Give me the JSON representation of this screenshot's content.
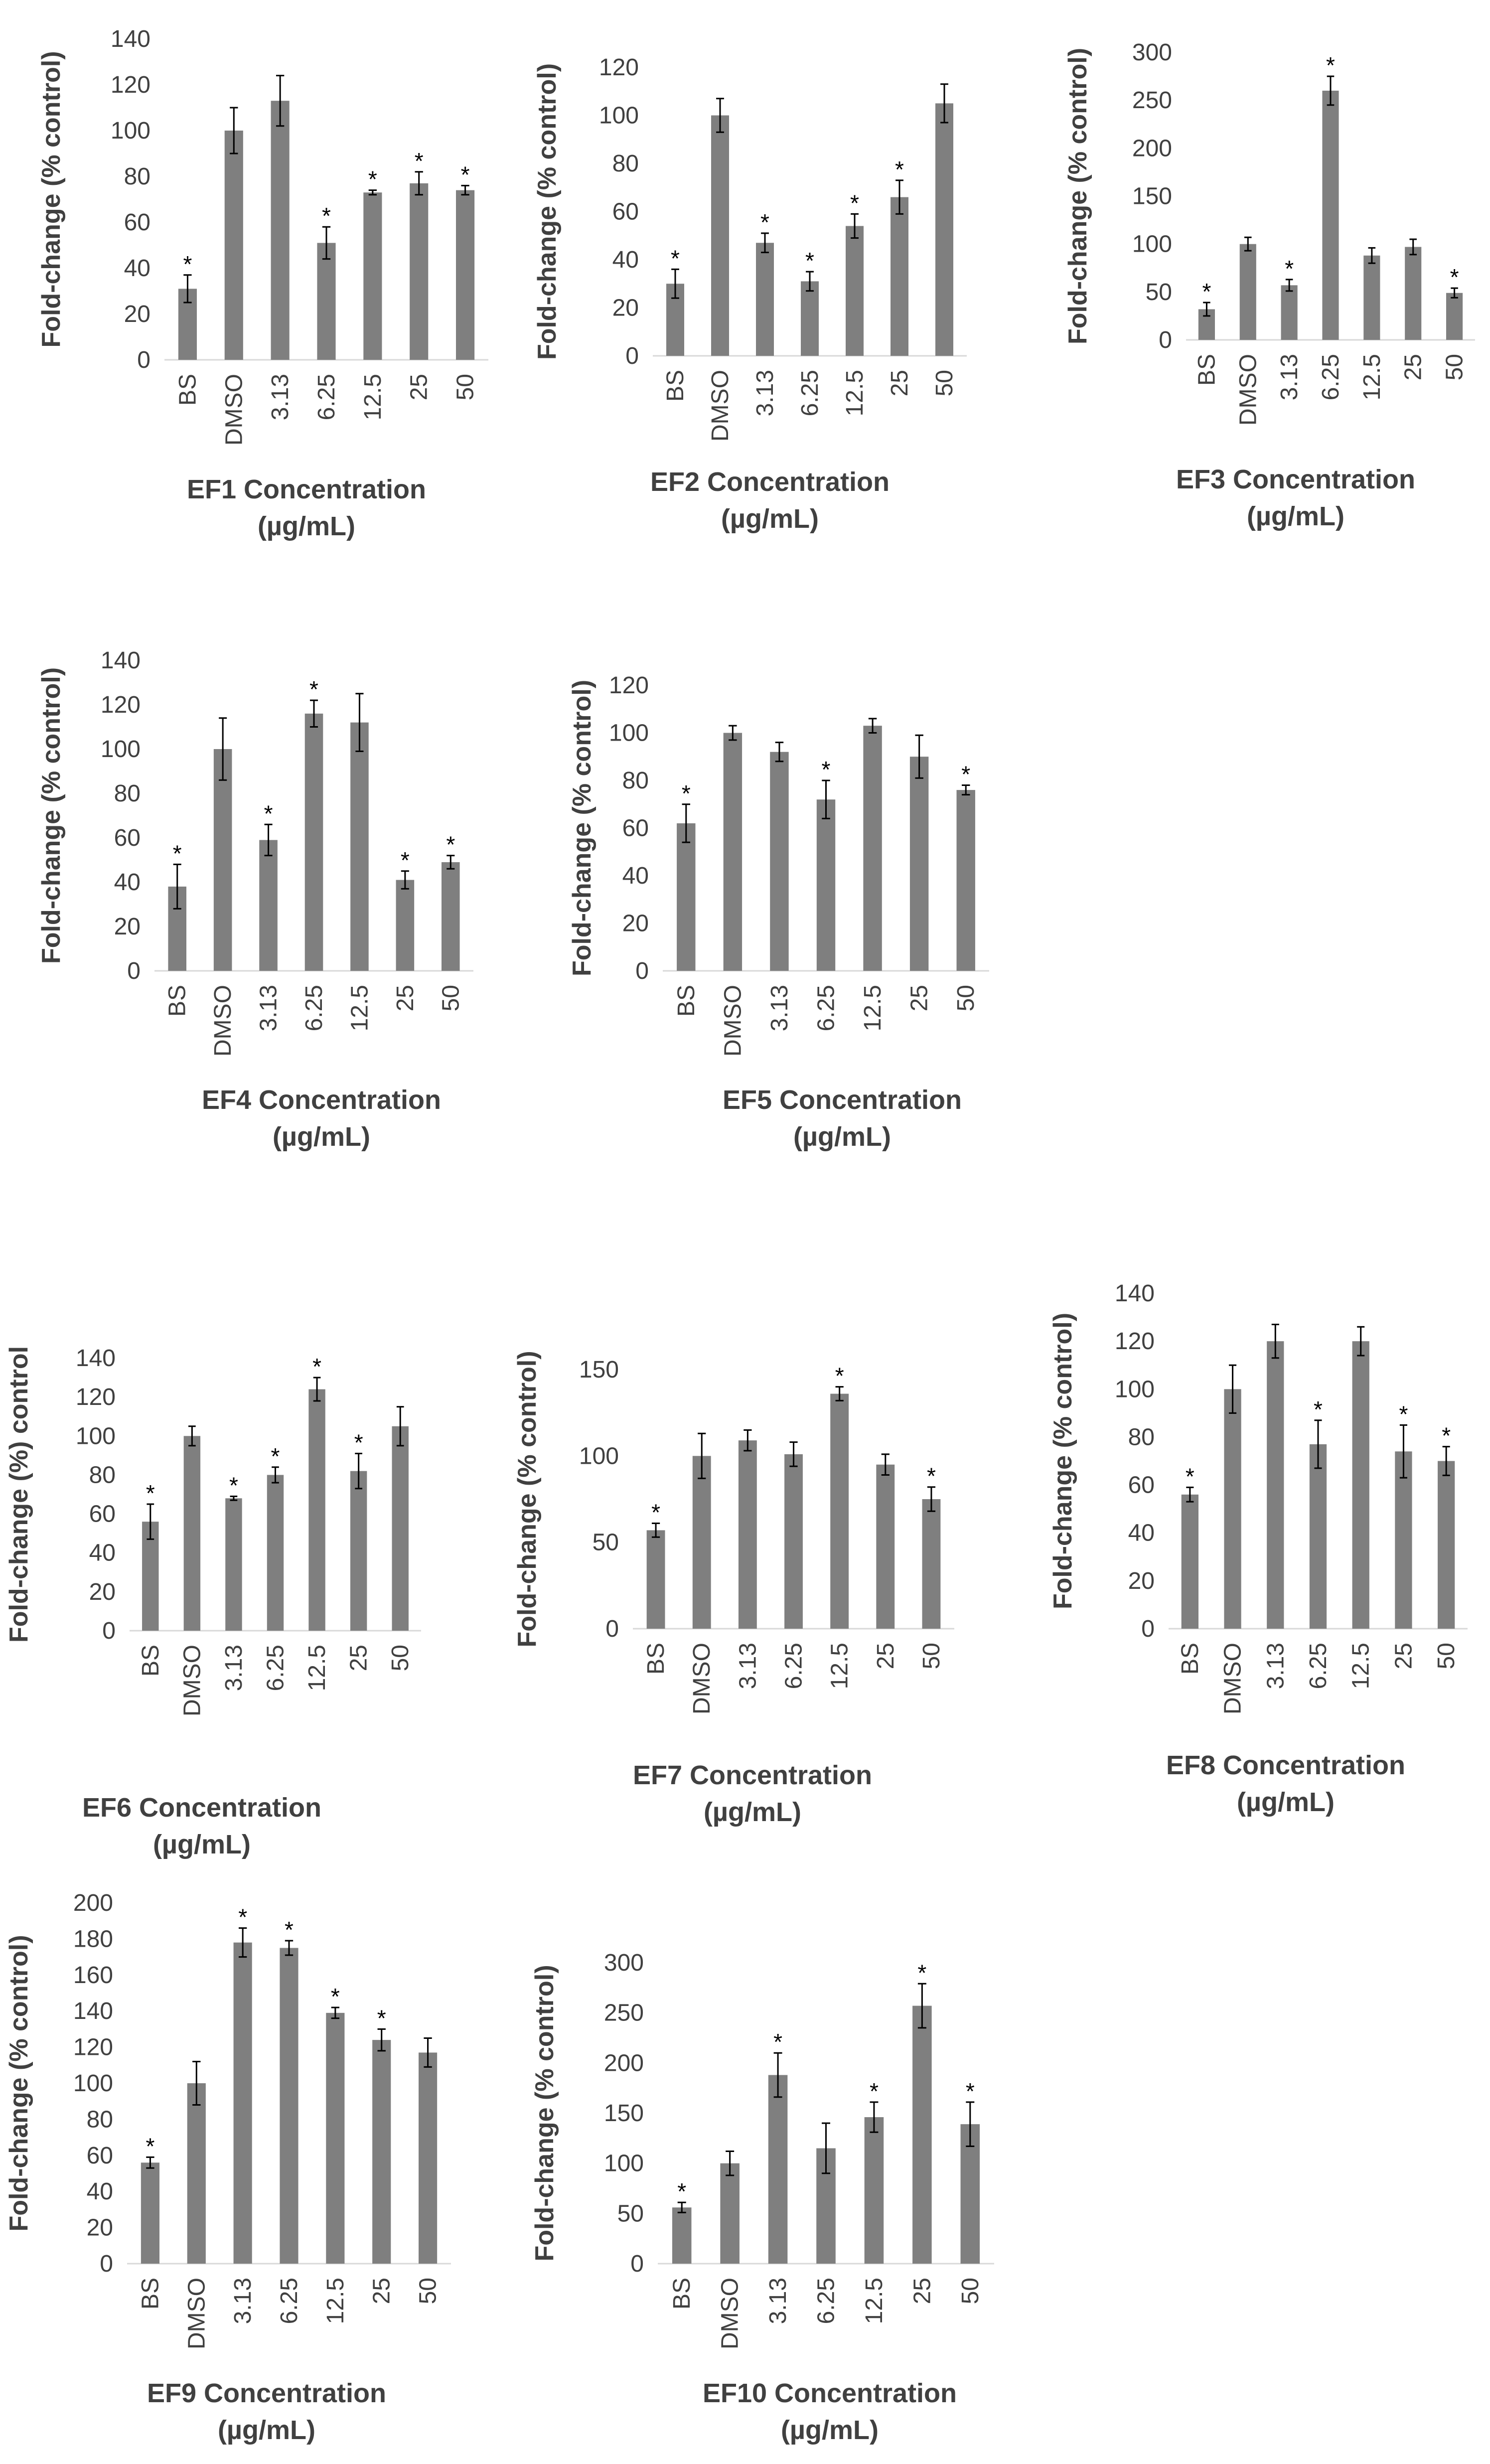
{
  "colors": {
    "bar": "#7f7f7f",
    "error_bar": "#000000",
    "axis": "#d9d9d9",
    "text": "#404040"
  },
  "chart_data": [
    {
      "type": "bar",
      "id": "ef1",
      "title": "",
      "xlabel_lines": [
        "EF1 Concentration",
        "(µg/mL)"
      ],
      "ylabel": "Fold-change  (% control)",
      "categories": [
        "BS",
        "DMSO",
        "3.13",
        "6.25",
        "12.5",
        "25",
        "50"
      ],
      "values": [
        31,
        100,
        113,
        51,
        73,
        77,
        74
      ],
      "errors": [
        6,
        10,
        11,
        7,
        1,
        5,
        2
      ],
      "significant": [
        true,
        false,
        false,
        true,
        true,
        true,
        true
      ],
      "ylim": [
        0,
        140
      ],
      "yticks": [
        0,
        20,
        40,
        60,
        80,
        100,
        120,
        140
      ]
    },
    {
      "type": "bar",
      "id": "ef2",
      "title": "",
      "xlabel_lines": [
        "EF2 Concentration",
        "(µg/mL)"
      ],
      "ylabel": "Fold-change (% control)",
      "categories": [
        "BS",
        "DMSO",
        "3.13",
        "6.25",
        "12.5",
        "25",
        "50"
      ],
      "values": [
        30,
        100,
        47,
        31,
        54,
        66,
        105
      ],
      "errors": [
        6,
        7,
        4,
        4,
        5,
        7,
        8
      ],
      "significant": [
        true,
        false,
        true,
        true,
        true,
        true,
        false
      ],
      "ylim": [
        0,
        120
      ],
      "yticks": [
        0,
        20,
        40,
        60,
        80,
        100,
        120
      ]
    },
    {
      "type": "bar",
      "id": "ef3",
      "title": "",
      "xlabel_lines": [
        "EF3 Concentration",
        "(µg/mL)"
      ],
      "ylabel": "Fold-change (% control)",
      "categories": [
        "BS",
        "DMSO",
        "3.13",
        "6.25",
        "12.5",
        "25",
        "50"
      ],
      "values": [
        32,
        100,
        57,
        260,
        88,
        97,
        49
      ],
      "errors": [
        7,
        7,
        6,
        15,
        8,
        8,
        5
      ],
      "significant": [
        true,
        false,
        true,
        true,
        false,
        false,
        true
      ],
      "ylim": [
        0,
        300
      ],
      "yticks": [
        0,
        50,
        100,
        150,
        200,
        250,
        300
      ]
    },
    {
      "type": "bar",
      "id": "ef4",
      "title": "",
      "xlabel_lines": [
        "EF4 Concentration",
        "(µg/mL)"
      ],
      "ylabel": "Fold-change (% control)",
      "categories": [
        "BS",
        "DMSO",
        "3.13",
        "6.25",
        "12.5",
        "25",
        "50"
      ],
      "values": [
        38,
        100,
        59,
        116,
        112,
        41,
        49
      ],
      "errors": [
        10,
        14,
        7,
        6,
        13,
        4,
        3
      ],
      "significant": [
        true,
        false,
        true,
        true,
        false,
        true,
        true
      ],
      "ylim": [
        0,
        140
      ],
      "yticks": [
        0,
        20,
        40,
        60,
        80,
        100,
        120,
        140
      ]
    },
    {
      "type": "bar",
      "id": "ef5",
      "title": "",
      "xlabel_lines": [
        "EF5 Concentration",
        "(µg/mL)"
      ],
      "ylabel": "Fold-change (% control)",
      "categories": [
        "BS",
        "DMSO",
        "3.13",
        "6.25",
        "12.5",
        "25",
        "50"
      ],
      "values": [
        62,
        100,
        92,
        72,
        103,
        90,
        76
      ],
      "errors": [
        8,
        3,
        4,
        8,
        3,
        9,
        2
      ],
      "significant": [
        true,
        false,
        false,
        true,
        false,
        false,
        true
      ],
      "ylim": [
        0,
        120
      ],
      "yticks": [
        0,
        20,
        40,
        60,
        80,
        100,
        120
      ]
    },
    {
      "type": "bar",
      "id": "ef6",
      "title": "",
      "xlabel_lines": [
        "EF6 Concentration",
        "(µg/mL)"
      ],
      "ylabel": "Fold-change (%) control",
      "categories": [
        "BS",
        "DMSO",
        "3.13",
        "6.25",
        "12.5",
        "25",
        "50"
      ],
      "values": [
        56,
        100,
        68,
        80,
        124,
        82,
        105
      ],
      "errors": [
        9,
        5,
        1,
        4,
        6,
        9,
        10
      ],
      "significant": [
        true,
        false,
        true,
        true,
        true,
        true,
        false
      ],
      "ylim": [
        0,
        140
      ],
      "yticks": [
        0,
        20,
        40,
        60,
        80,
        100,
        120,
        140
      ]
    },
    {
      "type": "bar",
      "id": "ef7",
      "title": "",
      "xlabel_lines": [
        "EF7 Concentration",
        "(µg/mL)"
      ],
      "ylabel": "Fold-change (% control)",
      "categories": [
        "BS",
        "DMSO",
        "3.13",
        "6.25",
        "12.5",
        "25",
        "50"
      ],
      "values": [
        57,
        100,
        109,
        101,
        136,
        95,
        75
      ],
      "errors": [
        4,
        13,
        6,
        7,
        4,
        6,
        7
      ],
      "significant": [
        true,
        false,
        false,
        false,
        true,
        false,
        true
      ],
      "ylim": [
        0,
        150
      ],
      "yticks": [
        0,
        50,
        100,
        150
      ]
    },
    {
      "type": "bar",
      "id": "ef8",
      "title": "",
      "xlabel_lines": [
        "EF8 Concentration",
        "(µg/mL)"
      ],
      "ylabel": "Fold-change (% control)",
      "categories": [
        "BS",
        "DMSO",
        "3.13",
        "6.25",
        "12.5",
        "25",
        "50"
      ],
      "values": [
        56,
        100,
        120,
        77,
        120,
        74,
        70
      ],
      "errors": [
        3,
        10,
        7,
        10,
        6,
        11,
        6
      ],
      "significant": [
        true,
        false,
        false,
        true,
        false,
        true,
        true
      ],
      "ylim": [
        0,
        140
      ],
      "yticks": [
        0,
        20,
        40,
        60,
        80,
        100,
        120,
        140
      ]
    },
    {
      "type": "bar",
      "id": "ef9",
      "title": "",
      "xlabel_lines": [
        "EF9 Concentration",
        "(µg/mL)"
      ],
      "ylabel": "Fold-change (% control)",
      "categories": [
        "BS",
        "DMSO",
        "3.13",
        "6.25",
        "12.5",
        "25",
        "50"
      ],
      "values": [
        56,
        100,
        178,
        175,
        139,
        124,
        117
      ],
      "errors": [
        3,
        12,
        8,
        4,
        3,
        6,
        8
      ],
      "significant": [
        true,
        false,
        true,
        true,
        true,
        true,
        false
      ],
      "ylim": [
        0,
        200
      ],
      "yticks": [
        0,
        20,
        40,
        60,
        80,
        100,
        120,
        140,
        160,
        180,
        200
      ]
    },
    {
      "type": "bar",
      "id": "ef10",
      "title": "",
      "xlabel_lines": [
        "EF10 Concentration",
        "(µg/mL)"
      ],
      "ylabel": "Fold-change (% control)",
      "categories": [
        "BS",
        "DMSO",
        "3.13",
        "6.25",
        "12.5",
        "25",
        "50"
      ],
      "values": [
        56,
        100,
        188,
        115,
        146,
        257,
        139
      ],
      "errors": [
        5,
        12,
        22,
        25,
        15,
        22,
        22
      ],
      "significant": [
        true,
        false,
        true,
        false,
        true,
        true,
        true
      ],
      "ylim": [
        0,
        300
      ],
      "yticks": [
        0,
        50,
        100,
        150,
        200,
        250,
        300
      ]
    }
  ],
  "significance_marker": "*"
}
